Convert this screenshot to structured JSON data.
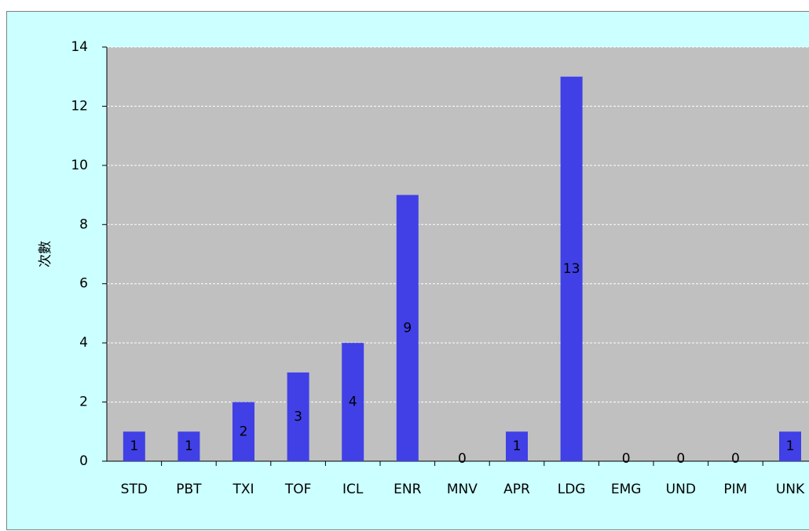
{
  "chart_data": {
    "type": "bar",
    "y_label": "次數",
    "categories": [
      "STD",
      "PBT",
      "TXI",
      "TOF",
      "ICL",
      "ENR",
      "MNV",
      "APR",
      "LDG",
      "EMG",
      "UND",
      "PIM",
      "UNK"
    ],
    "values": [
      1,
      1,
      2,
      3,
      4,
      9,
      0,
      1,
      13,
      0,
      0,
      0,
      1
    ],
    "color": "#4040e6",
    "ylim": [
      0,
      14
    ],
    "yticks": [
      0,
      2,
      4,
      6,
      8,
      10,
      12,
      14
    ],
    "grid": true
  }
}
